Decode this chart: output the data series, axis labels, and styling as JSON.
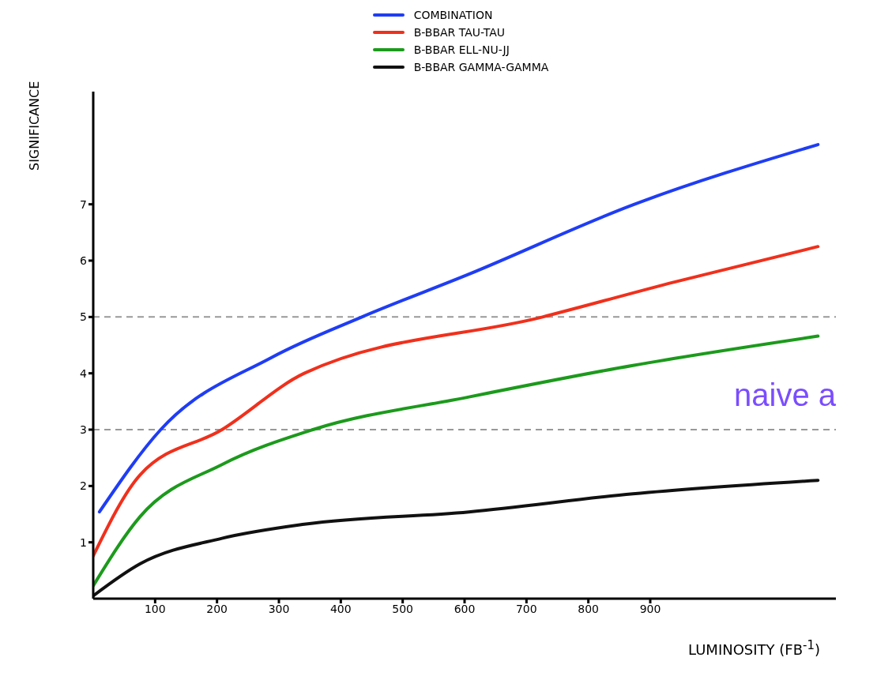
{
  "chart_data": {
    "type": "line",
    "xlabel": "LUMINOSITY (FB$^{-1}$)",
    "ylabel": "SIGNIFICANCE",
    "xlim": [
      0,
      1200
    ],
    "ylim": [
      0,
      9
    ],
    "xticks": [
      100,
      200,
      300,
      400,
      500,
      600,
      700,
      800,
      900
    ],
    "yticks": [
      1,
      2,
      3,
      4,
      5,
      6,
      7
    ],
    "grid": false,
    "legend": "top",
    "marker": "none",
    "line_style": "solid",
    "series": [
      {
        "name": "COMBINATION",
        "color": "#1f3df5",
        "x": [
          10,
          109,
          288,
          434,
          607,
          872,
          1171
        ],
        "values": [
          1.54,
          3.0,
          4.28,
          5.0,
          5.76,
          6.99,
          8.06
        ]
      },
      {
        "name": "B-BBAR TAU-TAU",
        "color": "#f0301c",
        "x": [
          0,
          76,
          208,
          341,
          726,
          939,
          1171
        ],
        "values": [
          0.76,
          2.2,
          3.0,
          4.0,
          5.0,
          5.62,
          6.25
        ]
      },
      {
        "name": "B-BBAR ELL-NU-JJ",
        "color": "#1c9a1c",
        "x": [
          0,
          76,
          208,
          355,
          607,
          872,
          1171
        ],
        "values": [
          0.23,
          1.46,
          2.38,
          3.0,
          3.58,
          4.14,
          4.66
        ]
      },
      {
        "name": "B-BBAR GAMMA-GAMMA",
        "color": "#111111",
        "x": [
          0,
          76,
          208,
          341,
          607,
          872,
          1171
        ],
        "values": [
          0.05,
          0.62,
          1.07,
          1.32,
          1.54,
          1.86,
          2.1
        ]
      }
    ],
    "ref_lines": [
      {
        "axis": "y",
        "value": 5,
        "color": "#999999",
        "line_style": "dashed"
      },
      {
        "axis": "y",
        "value": 3,
        "color": "#999999",
        "line_style": "dashed"
      }
    ],
    "annotations": [
      "naive a"
    ]
  }
}
